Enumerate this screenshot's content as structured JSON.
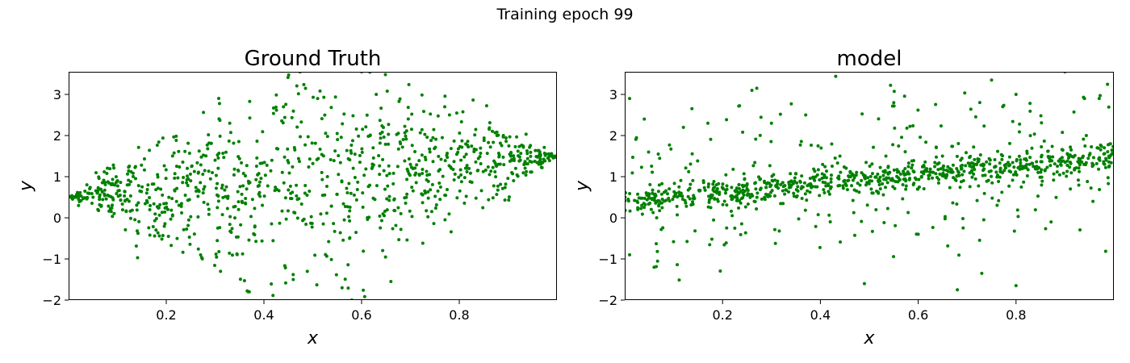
{
  "figure": {
    "suptitle": "Training epoch 99"
  },
  "chart_data": [
    {
      "type": "scatter",
      "title": "Ground Truth",
      "xlabel": "x",
      "ylabel": "y",
      "xlim": [
        0.0,
        1.0
      ],
      "ylim": [
        -2.0,
        3.55
      ],
      "xticks": [
        0.2,
        0.4,
        0.6,
        0.8
      ],
      "xtick_labels": [
        "0.2",
        "0.4",
        "0.6",
        "0.8"
      ],
      "yticks": [
        -2,
        -1,
        0,
        1,
        2,
        3
      ],
      "ytick_labels": [
        "−2",
        "−1",
        "0",
        "1",
        "2",
        "3"
      ],
      "grid": false,
      "marker_color": "#008000",
      "num_points": 1000,
      "pattern": "y centered on 0.5 + x with spread growing to a maximum near x = 0.5 and shrinking to zero at both ends",
      "sample_points": [
        [
          0.02,
          0.51
        ],
        [
          0.05,
          0.5
        ],
        [
          0.08,
          0.55
        ],
        [
          0.12,
          0.45
        ],
        [
          0.16,
          0.6
        ],
        [
          0.2,
          0.35
        ],
        [
          0.25,
          0.9
        ],
        [
          0.3,
          1.4
        ],
        [
          0.33,
          2.3
        ],
        [
          0.37,
          -1.8
        ],
        [
          0.44,
          2.7
        ],
        [
          0.46,
          -1.5
        ],
        [
          0.51,
          2.9
        ],
        [
          0.53,
          1.0
        ],
        [
          0.56,
          -1.7
        ],
        [
          0.58,
          -2.0
        ],
        [
          0.6,
          3.55
        ],
        [
          0.63,
          3.0
        ],
        [
          0.66,
          -1.55
        ],
        [
          0.7,
          1.3
        ],
        [
          0.74,
          1.6
        ],
        [
          0.78,
          2.5
        ],
        [
          0.82,
          1.2
        ],
        [
          0.88,
          1.3
        ],
        [
          0.94,
          1.44
        ],
        [
          0.99,
          1.5
        ]
      ]
    },
    {
      "type": "scatter",
      "title": "model",
      "xlabel": "x",
      "ylabel": "y",
      "xlim": [
        0.0,
        1.0
      ],
      "ylim": [
        -2.0,
        3.55
      ],
      "xticks": [
        0.2,
        0.4,
        0.6,
        0.8
      ],
      "xtick_labels": [
        "0.2",
        "0.4",
        "0.6",
        "0.8"
      ],
      "yticks": [
        -2,
        -1,
        0,
        1,
        2,
        3
      ],
      "ytick_labels": [
        "−2",
        "−1",
        "0",
        "1",
        "2",
        "3"
      ],
      "grid": false,
      "marker_color": "#008000",
      "num_points": 1000,
      "pattern": "dense band rising from about 0.4 at x = 0 to about 1.5 at x = 1, with widely scattered outliers",
      "sample_points": [
        [
          0.01,
          2.9
        ],
        [
          0.01,
          -0.9
        ],
        [
          0.04,
          2.4
        ],
        [
          0.06,
          -1.2
        ],
        [
          0.12,
          2.2
        ],
        [
          0.17,
          2.3
        ],
        [
          0.26,
          3.1
        ],
        [
          0.27,
          3.15
        ],
        [
          0.3,
          2.3
        ],
        [
          0.37,
          2.5
        ],
        [
          0.44,
          1.5
        ],
        [
          0.49,
          -1.6
        ],
        [
          0.55,
          2.8
        ],
        [
          0.6,
          -0.4
        ],
        [
          0.68,
          -1.75
        ],
        [
          0.73,
          -1.35
        ],
        [
          0.75,
          3.35
        ],
        [
          0.8,
          -1.65
        ],
        [
          0.8,
          3.0
        ],
        [
          0.9,
          3.55
        ],
        [
          0.94,
          2.9
        ],
        [
          0.97,
          2.9
        ],
        [
          0.99,
          1.5
        ]
      ]
    }
  ]
}
